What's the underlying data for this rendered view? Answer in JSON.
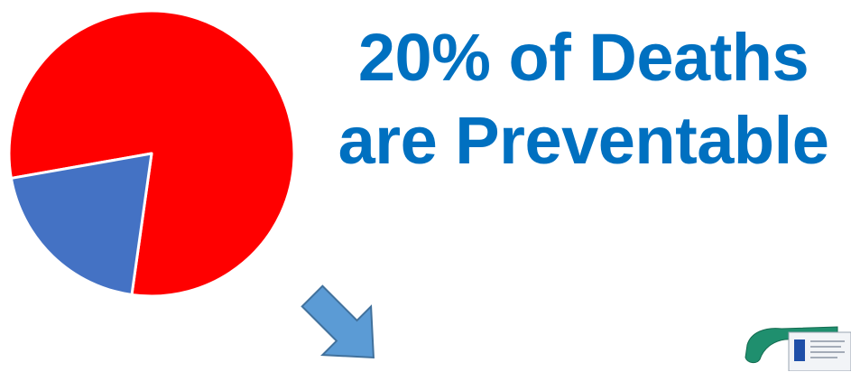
{
  "chart_data": {
    "type": "pie",
    "title": "",
    "slices": [
      {
        "value": 80,
        "color": "#ff0000"
      },
      {
        "value": 20,
        "color": "#4472c4"
      }
    ]
  },
  "headline": {
    "line1": "20% of Deaths",
    "line2": "are Preventable"
  },
  "arrow": {
    "direction": "down-right",
    "color": "#5b9bd5"
  },
  "decor": {
    "icon": "medical-product-icon"
  }
}
